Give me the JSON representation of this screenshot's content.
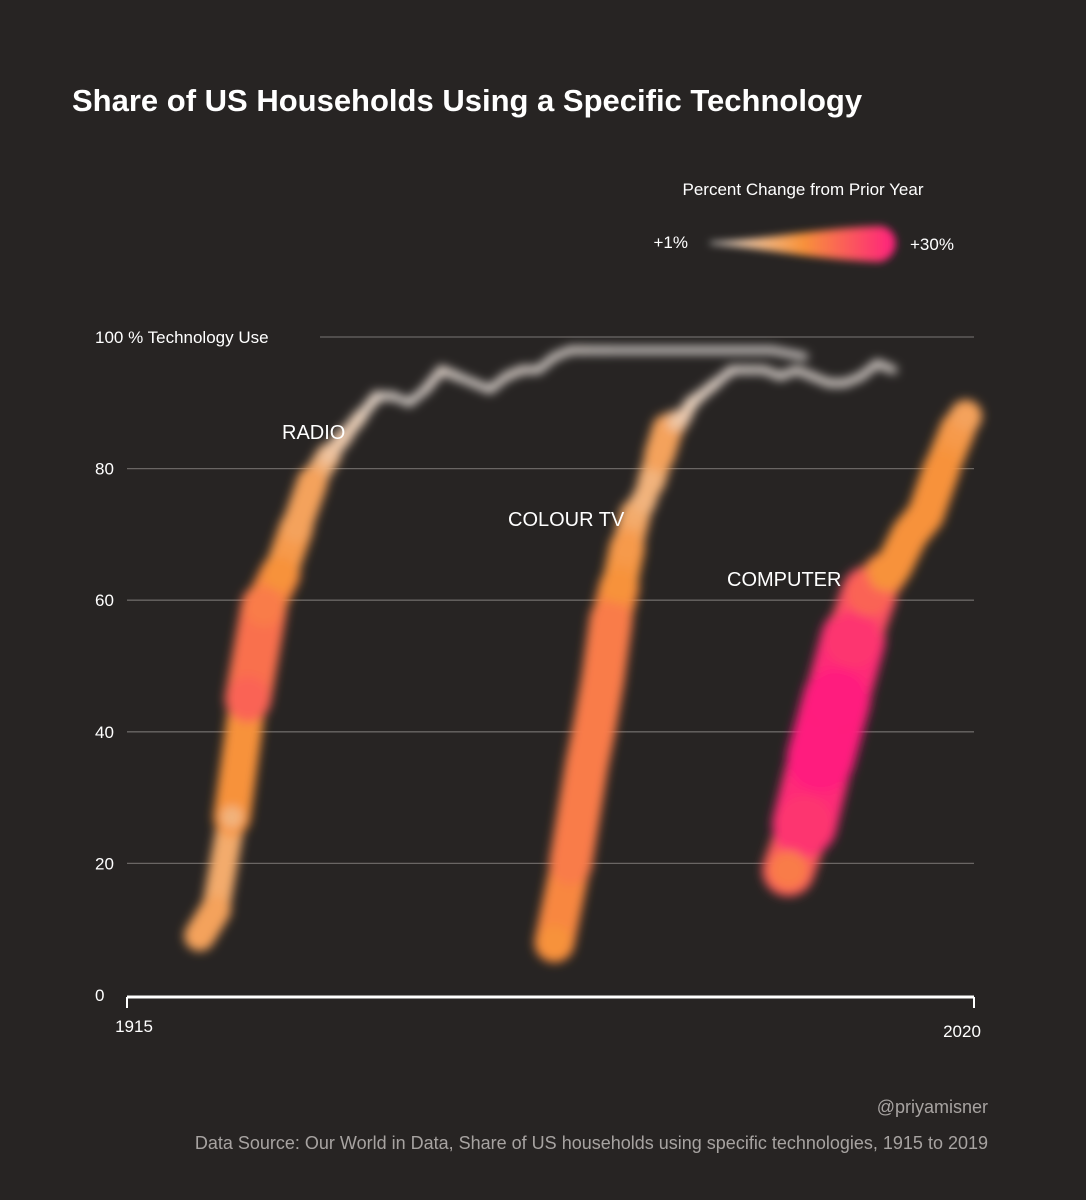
{
  "chart_data": {
    "type": "line",
    "title": "Share of US Households Using a Specific Technology",
    "ylabel": "100 % Technology Use",
    "xlim": [
      1915,
      2020
    ],
    "ylim": [
      0,
      100
    ],
    "x_ticks": [
      "1915",
      "2020"
    ],
    "y_ticks": [
      "0",
      "20",
      "40",
      "60",
      "80",
      "100 % Technology Use"
    ],
    "grid": true,
    "legend": {
      "title": "Percent Change from Prior Year",
      "min_label": "+1%",
      "max_label": "+30%",
      "min_color": "#e8e4e2",
      "mid_color": "#f7923a",
      "max_color": "#ff1f7e",
      "placement": "top-right"
    },
    "series": [
      {
        "name": "RADIO",
        "x": [
          1924,
          1926,
          1928,
          1930,
          1932,
          1934,
          1936,
          1938,
          1940,
          1942,
          1944,
          1946,
          1948,
          1950,
          1952,
          1954,
          1956,
          1958,
          1960,
          1962,
          1964,
          1966,
          1968,
          1970,
          1972,
          1975,
          1980,
          1985,
          1990,
          1995,
          1999
        ],
        "y": [
          9,
          13,
          27,
          45,
          59,
          64,
          71,
          78,
          82,
          85,
          88,
          91,
          91,
          90,
          92,
          95,
          94,
          93,
          92,
          94,
          95,
          95,
          97,
          98,
          98,
          98,
          98,
          98,
          98,
          98,
          97
        ],
        "change": [
          0.4,
          0.4,
          0.3,
          0.7,
          0.6,
          0.5,
          0.4,
          0.4,
          0.2,
          0.15,
          0.1,
          0.05,
          0.02,
          0.02,
          0.03,
          0.05,
          0.02,
          0.02,
          0.02,
          0.03,
          0.03,
          0.02,
          0.02,
          0.02,
          0.02,
          0.01,
          0.01,
          0.01,
          0.01,
          0.01,
          0.01
        ]
      },
      {
        "name": "COLOUR TV",
        "x": [
          1968,
          1970,
          1972,
          1973,
          1974,
          1975,
          1976,
          1977,
          1978,
          1979,
          1980,
          1981,
          1982,
          1983,
          1984,
          1985,
          1986,
          1988,
          1990,
          1992,
          1994,
          1996,
          1998,
          2000,
          2002,
          2004,
          2006,
          2008,
          2010
        ],
        "y": [
          8,
          20,
          35,
          41,
          48,
          57,
          62,
          68,
          73,
          75,
          78,
          82,
          86,
          87,
          88,
          90,
          91,
          93,
          95,
          95,
          95,
          94,
          95,
          94,
          93,
          93,
          94,
          96,
          95
        ],
        "change": [
          0.5,
          0.6,
          0.6,
          0.6,
          0.6,
          0.6,
          0.5,
          0.45,
          0.35,
          0.3,
          0.3,
          0.4,
          0.4,
          0.2,
          0.15,
          0.1,
          0.08,
          0.05,
          0.03,
          0.02,
          0.02,
          0.02,
          0.02,
          0.02,
          0.02,
          0.02,
          0.02,
          0.02,
          0.02
        ]
      },
      {
        "name": "COMPUTER",
        "x": [
          1997,
          1999,
          2001,
          2003,
          2005,
          2007,
          2009,
          2010,
          2012,
          2014,
          2016,
          2018,
          2019
        ],
        "y": [
          19,
          26,
          36,
          45,
          54,
          61,
          64,
          65,
          70,
          73,
          80,
          86,
          88
        ],
        "change": [
          0.6,
          0.9,
          1.0,
          1.0,
          0.9,
          0.7,
          0.5,
          0.5,
          0.5,
          0.5,
          0.5,
          0.45,
          0.4
        ]
      }
    ]
  },
  "footer": {
    "credit": "@priyamisner",
    "source": "Data Source: Our World in Data, Share of US households using specific technologies, 1915 to 2019"
  }
}
